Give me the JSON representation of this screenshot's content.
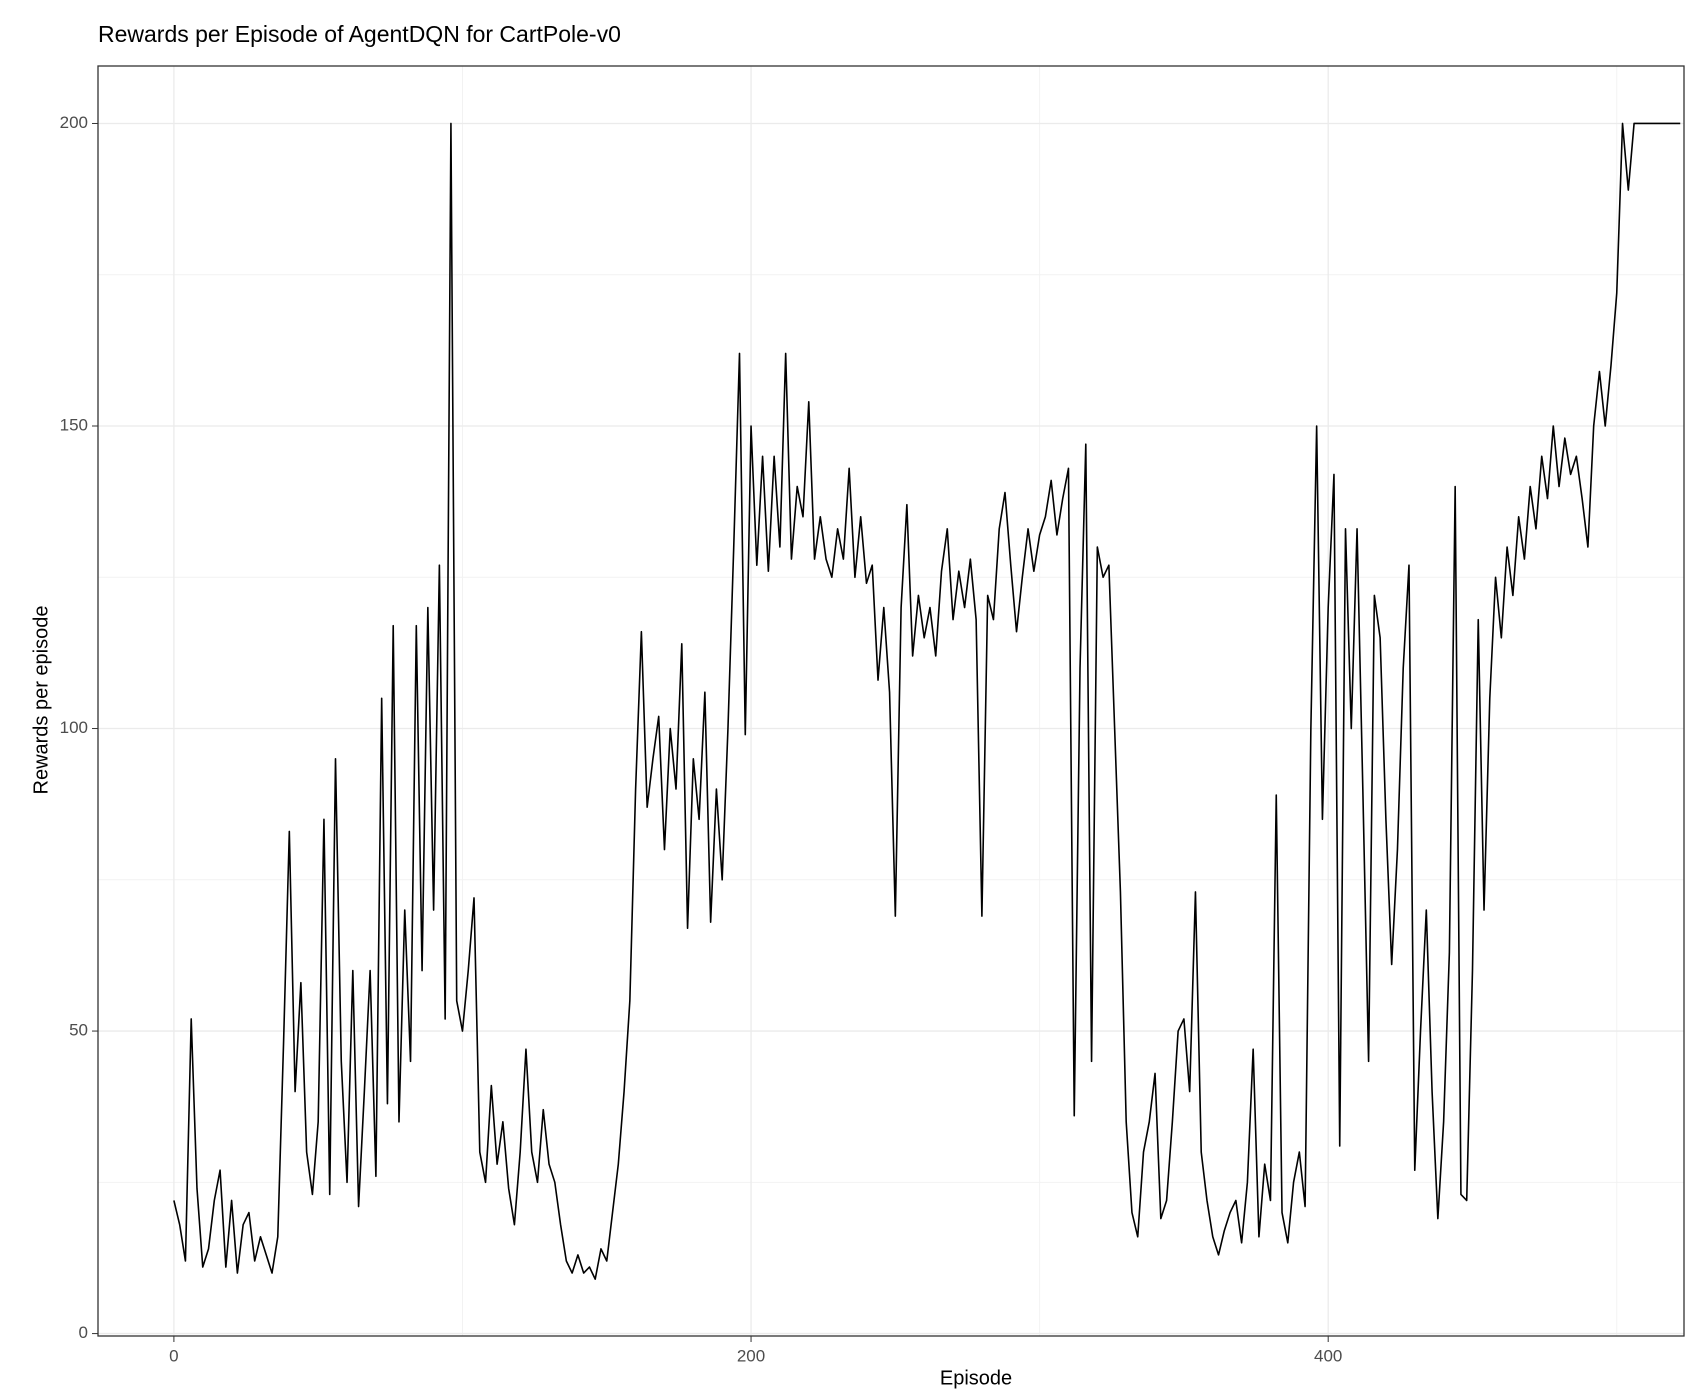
{
  "chart_data": {
    "type": "line",
    "title": "Rewards per Episode of AgentDQN for CartPole-v0",
    "xlabel": "Episode",
    "ylabel": "Rewards per episode",
    "x": [
      0,
      2,
      4,
      6,
      8,
      10,
      12,
      14,
      16,
      18,
      20,
      22,
      24,
      26,
      28,
      30,
      32,
      34,
      36,
      38,
      40,
      42,
      44,
      46,
      48,
      50,
      52,
      54,
      56,
      58,
      60,
      62,
      64,
      66,
      68,
      70,
      72,
      74,
      76,
      78,
      80,
      82,
      84,
      86,
      88,
      90,
      92,
      94,
      96,
      98,
      100,
      102,
      104,
      106,
      108,
      110,
      112,
      114,
      116,
      118,
      120,
      122,
      124,
      126,
      128,
      130,
      132,
      134,
      136,
      138,
      140,
      142,
      144,
      146,
      148,
      150,
      152,
      154,
      156,
      158,
      160,
      162,
      164,
      166,
      168,
      170,
      172,
      174,
      176,
      178,
      180,
      182,
      184,
      186,
      188,
      190,
      192,
      194,
      196,
      198,
      200,
      202,
      204,
      206,
      208,
      210,
      212,
      214,
      216,
      218,
      220,
      222,
      224,
      226,
      228,
      230,
      232,
      234,
      236,
      238,
      240,
      242,
      244,
      246,
      248,
      250,
      252,
      254,
      256,
      258,
      260,
      262,
      264,
      266,
      268,
      270,
      272,
      274,
      276,
      278,
      280,
      282,
      284,
      286,
      288,
      290,
      292,
      294,
      296,
      298,
      300,
      302,
      304,
      306,
      308,
      310,
      312,
      314,
      316,
      318,
      320,
      322,
      324,
      326,
      328,
      330,
      332,
      334,
      336,
      338,
      340,
      342,
      344,
      346,
      348,
      350,
      352,
      354,
      356,
      358,
      360,
      362,
      364,
      366,
      368,
      370,
      372,
      374,
      376,
      378,
      380,
      382,
      384,
      386,
      388,
      390,
      392,
      394,
      396,
      398,
      400,
      402,
      404,
      406,
      408,
      410,
      412,
      414,
      416,
      418,
      420,
      422,
      424,
      426,
      428,
      430,
      432,
      434,
      436,
      438,
      440,
      442,
      444,
      446,
      448,
      450,
      452,
      454,
      456,
      458,
      460,
      462,
      464,
      466,
      468,
      470,
      472,
      474,
      476,
      478,
      480,
      482,
      484,
      486,
      488,
      490,
      492,
      494,
      496,
      498,
      500,
      502,
      504,
      506,
      508,
      510,
      512,
      514,
      516,
      518,
      520,
      522
    ],
    "series": [
      {
        "name": "Rewards",
        "color": "#000000",
        "values": [
          22,
          18,
          12,
          52,
          24,
          11,
          14,
          22,
          27,
          11,
          22,
          10,
          18,
          20,
          12,
          16,
          13,
          10,
          16,
          48,
          83,
          40,
          58,
          30,
          23,
          35,
          85,
          23,
          95,
          45,
          25,
          60,
          21,
          40,
          60,
          26,
          105,
          38,
          117,
          35,
          70,
          45,
          117,
          60,
          120,
          70,
          127,
          52,
          200,
          55,
          50,
          60,
          72,
          30,
          25,
          41,
          28,
          35,
          24,
          18,
          30,
          47,
          30,
          25,
          37,
          28,
          25,
          18,
          12,
          10,
          13,
          10,
          11,
          9,
          14,
          12,
          20,
          28,
          40,
          55,
          90,
          116,
          87,
          95,
          102,
          80,
          100,
          90,
          114,
          67,
          95,
          85,
          106,
          68,
          90,
          75,
          100,
          130,
          162,
          99,
          150,
          127,
          145,
          126,
          145,
          130,
          162,
          128,
          140,
          135,
          154,
          128,
          135,
          128,
          125,
          133,
          128,
          143,
          125,
          135,
          124,
          127,
          108,
          120,
          106,
          69,
          120,
          137,
          112,
          122,
          115,
          120,
          112,
          126,
          133,
          118,
          126,
          120,
          128,
          118,
          69,
          122,
          118,
          133,
          139,
          127,
          116,
          125,
          133,
          126,
          132,
          135,
          141,
          132,
          138,
          143,
          36,
          110,
          147,
          45,
          130,
          125,
          127,
          100,
          73,
          35,
          20,
          16,
          30,
          35,
          43,
          19,
          22,
          35,
          50,
          52,
          40,
          73,
          30,
          22,
          16,
          13,
          17,
          20,
          22,
          15,
          25,
          47,
          16,
          28,
          22,
          89,
          20,
          15,
          25,
          30,
          21,
          100,
          150,
          85,
          120,
          142,
          31,
          133,
          100,
          133,
          90,
          45,
          122,
          115,
          85,
          61,
          80,
          110,
          127,
          27,
          50,
          70,
          40,
          19,
          35,
          63,
          140,
          23,
          22,
          60,
          118,
          70,
          105,
          125,
          115,
          130,
          122,
          135,
          128,
          140,
          133,
          145,
          138,
          150,
          140,
          148,
          142,
          145,
          138,
          130,
          150,
          159,
          150,
          160,
          172,
          200,
          189,
          200,
          200,
          200,
          200,
          200,
          200,
          200,
          200,
          200
        ]
      }
    ],
    "xlim": [
      -26.3,
      523.3
    ],
    "ylim": [
      -0.4,
      209.5
    ],
    "xticks": [
      0,
      200,
      400
    ],
    "yticks": [
      0,
      50,
      100,
      150,
      200
    ],
    "xminor": [
      100,
      300,
      500
    ],
    "yminor": [
      25,
      75,
      125,
      175
    ],
    "grid": true
  }
}
